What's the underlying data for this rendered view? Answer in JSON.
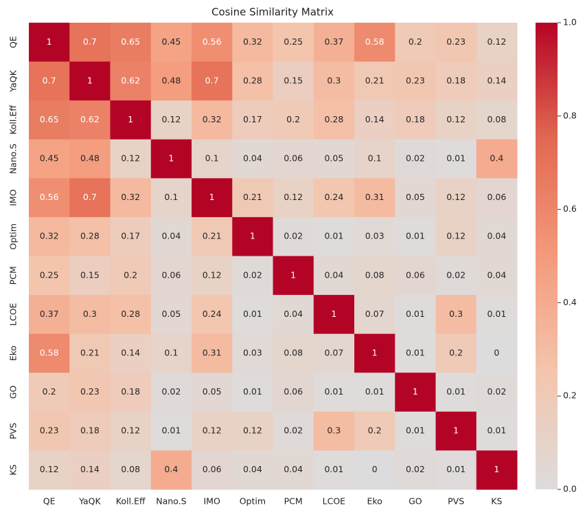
{
  "chart_data": {
    "type": "heatmap",
    "title": "Cosine Similarity Matrix",
    "categories": [
      "QE",
      "YaQK",
      "Koll.Eff",
      "Nano.S",
      "IMO",
      "Optim",
      "PCM",
      "LCOE",
      "Eko",
      "GO",
      "PVS",
      "KS"
    ],
    "z": [
      [
        1,
        0.7,
        0.65,
        0.45,
        0.56,
        0.32,
        0.25,
        0.37,
        0.58,
        0.2,
        0.23,
        0.12
      ],
      [
        0.7,
        1,
        0.62,
        0.48,
        0.7,
        0.28,
        0.15,
        0.3,
        0.21,
        0.23,
        0.18,
        0.14
      ],
      [
        0.65,
        0.62,
        1,
        0.12,
        0.32,
        0.17,
        0.2,
        0.28,
        0.14,
        0.18,
        0.12,
        0.08
      ],
      [
        0.45,
        0.48,
        0.12,
        1,
        0.1,
        0.04,
        0.06,
        0.05,
        0.1,
        0.02,
        0.01,
        0.4
      ],
      [
        0.56,
        0.7,
        0.32,
        0.1,
        1,
        0.21,
        0.12,
        0.24,
        0.31,
        0.05,
        0.12,
        0.06
      ],
      [
        0.32,
        0.28,
        0.17,
        0.04,
        0.21,
        1,
        0.02,
        0.01,
        0.03,
        0.01,
        0.12,
        0.04
      ],
      [
        0.25,
        0.15,
        0.2,
        0.06,
        0.12,
        0.02,
        1,
        0.04,
        0.08,
        0.06,
        0.02,
        0.04
      ],
      [
        0.37,
        0.3,
        0.28,
        0.05,
        0.24,
        0.01,
        0.04,
        1,
        0.07,
        0.01,
        0.3,
        0.01
      ],
      [
        0.58,
        0.21,
        0.14,
        0.1,
        0.31,
        0.03,
        0.08,
        0.07,
        1,
        0.01,
        0.2,
        0
      ],
      [
        0.2,
        0.23,
        0.18,
        0.02,
        0.05,
        0.01,
        0.06,
        0.01,
        0.01,
        1,
        0.01,
        0.02
      ],
      [
        0.23,
        0.18,
        0.12,
        0.01,
        0.12,
        0.12,
        0.02,
        0.3,
        0.2,
        0.01,
        1,
        0.01
      ],
      [
        0.12,
        0.14,
        0.08,
        0.4,
        0.06,
        0.04,
        0.04,
        0.01,
        0,
        0.02,
        0.01,
        1
      ]
    ],
    "zlim": [
      0,
      1
    ],
    "colorbar_ticks": [
      {
        "value": 0,
        "label": "0.0"
      },
      0.2,
      0.4,
      0.6,
      0.8,
      {
        "value": 1,
        "label": "1.0"
      }
    ],
    "colorscale": [
      "#dddcdc",
      "#f4c5ad",
      "#f49a7b",
      "#e26952",
      "#b40426"
    ]
  }
}
